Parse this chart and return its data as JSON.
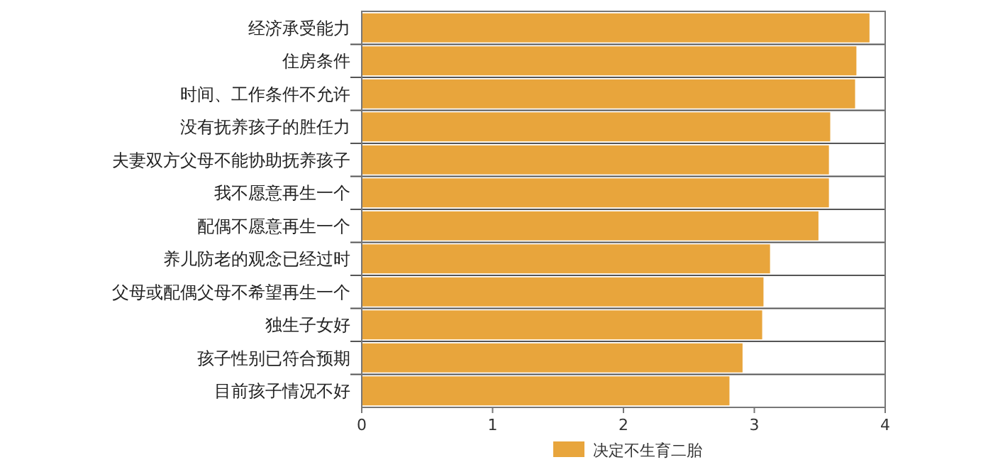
{
  "chart_data": {
    "type": "bar",
    "orientation": "horizontal",
    "categories": [
      "经济承受能力",
      "住房条件",
      "时间、工作条件不允许",
      "没有抚养孩子的胜任力",
      "夫妻双方父母不能协助抚养孩子",
      "我不愿意再生一个",
      "配偶不愿意再生一个",
      "养儿防老的观念已经过时",
      "父母或配偶父母不希望再生一个",
      "独生子女好",
      "孩子性别已符合预期",
      "目前孩子情况不好"
    ],
    "series": [
      {
        "name": "决定不生育二胎",
        "color": "#e8a53c",
        "values": [
          3.88,
          3.78,
          3.77,
          3.58,
          3.57,
          3.57,
          3.49,
          3.12,
          3.07,
          3.06,
          2.91,
          2.81
        ]
      }
    ],
    "xlim": [
      0,
      4
    ],
    "xticks": [
      0,
      1,
      2,
      3,
      4
    ],
    "grid": "y",
    "legend": "bottom"
  }
}
